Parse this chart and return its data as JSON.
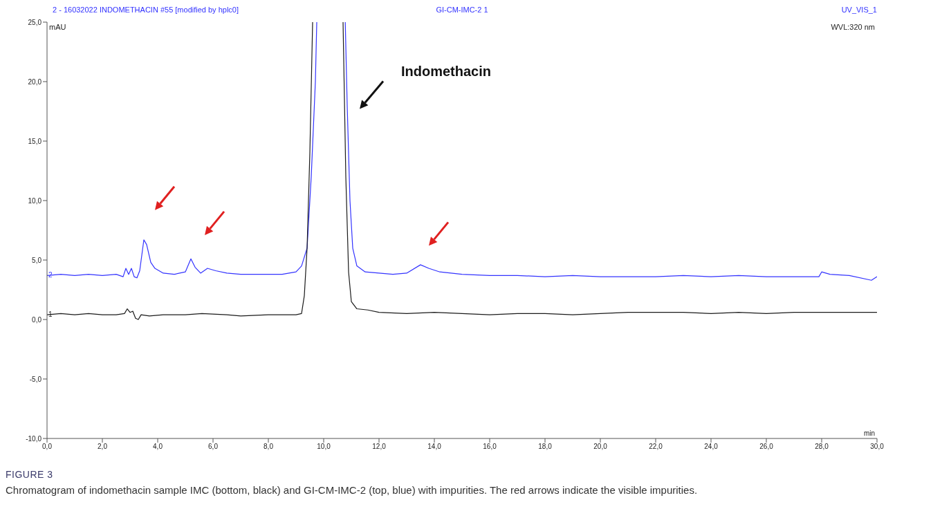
{
  "chart_data": {
    "type": "line",
    "title": "2 - 16032022 INDOMETHACIN #55 [modified by hplc0]",
    "subtitle": "GI-CM-IMC-2 1",
    "xlabel": "min",
    "ylabel": "mAU",
    "annotations": [
      "UV_VIS_1",
      "WVL:320 nm",
      "Indomethacin",
      "FIGURE 3",
      "Chromatogram of indomethacin sample IMC (bottom, black) and GI-CM-IMC-2 (top, blue) with impurities. The red arrows indicate the visible impurities."
    ],
    "xlim": [
      0,
      30
    ],
    "ylim": [
      -10,
      25
    ],
    "xticks": [
      {
        "value": 0,
        "label": "0,0"
      },
      {
        "value": 2,
        "label": "2,0"
      },
      {
        "value": 4,
        "label": "4,0"
      },
      {
        "value": 6,
        "label": "6,0"
      },
      {
        "value": 8,
        "label": "8,0"
      },
      {
        "value": 10,
        "label": "10,0"
      },
      {
        "value": 12,
        "label": "12,0"
      },
      {
        "value": 14,
        "label": "14,0"
      },
      {
        "value": 16,
        "label": "16,0"
      },
      {
        "value": 18,
        "label": "18,0"
      },
      {
        "value": 20,
        "label": "20,0"
      },
      {
        "value": 22,
        "label": "22,0"
      },
      {
        "value": 24,
        "label": "24,0"
      },
      {
        "value": 26,
        "label": "26,0"
      },
      {
        "value": 28,
        "label": "28,0"
      },
      {
        "value": 30,
        "label": "30,0"
      }
    ],
    "yticks": [
      {
        "value": -10,
        "label": "-10,0"
      },
      {
        "value": -5,
        "label": "-5,0"
      },
      {
        "value": 0,
        "label": "0,0"
      },
      {
        "value": 5,
        "label": "5,0"
      },
      {
        "value": 10,
        "label": "10,0"
      },
      {
        "value": 15,
        "label": "15,0"
      },
      {
        "value": 20,
        "label": "20,0"
      },
      {
        "value": 25,
        "label": "25,0"
      }
    ],
    "grid": false,
    "legend": false,
    "marker": "none",
    "line_style": "solid",
    "series": [
      {
        "name": "2",
        "color": "#3333ff",
        "x": [
          0,
          0.5,
          1,
          1.5,
          2,
          2.5,
          2.75,
          2.85,
          2.95,
          3.05,
          3.15,
          3.25,
          3.35,
          3.5,
          3.6,
          3.75,
          3.9,
          4.2,
          4.6,
          5,
          5.2,
          5.35,
          5.55,
          5.8,
          6.1,
          6.5,
          7,
          7.5,
          8,
          8.5,
          9,
          9.2,
          9.4,
          9.55,
          9.7,
          9.75,
          10.2,
          10.78,
          10.85,
          10.95,
          11.05,
          11.2,
          11.5,
          12,
          12.5,
          13,
          13.5,
          13.8,
          14.2,
          15,
          16,
          17,
          18,
          19,
          20,
          21,
          22,
          23,
          24,
          25,
          26,
          27,
          27.9,
          28,
          28.3,
          29,
          29.8,
          30
        ],
        "values": [
          3.7,
          3.8,
          3.7,
          3.8,
          3.7,
          3.8,
          3.6,
          4.3,
          3.8,
          4.3,
          3.6,
          3.5,
          4.1,
          6.7,
          6.3,
          4.8,
          4.3,
          3.9,
          3.8,
          4,
          5.1,
          4.4,
          3.9,
          4.3,
          4.1,
          3.9,
          3.8,
          3.8,
          3.8,
          3.8,
          4,
          4.5,
          6,
          12,
          20,
          25,
          null,
          25,
          18,
          10,
          6,
          4.5,
          4,
          3.9,
          3.8,
          3.9,
          4.6,
          4.3,
          4,
          3.8,
          3.7,
          3.7,
          3.6,
          3.7,
          3.6,
          3.6,
          3.6,
          3.7,
          3.6,
          3.7,
          3.6,
          3.6,
          3.6,
          4,
          3.8,
          3.7,
          3.3,
          3.6
        ]
      },
      {
        "name": "1",
        "color": "#1a1a1a",
        "x": [
          0,
          0.5,
          1,
          1.5,
          2,
          2.5,
          2.8,
          2.9,
          3,
          3.1,
          3.2,
          3.3,
          3.4,
          3.7,
          4.2,
          5,
          5.6,
          6.5,
          7,
          8,
          9,
          9.2,
          9.3,
          9.4,
          9.5,
          9.6,
          10.1,
          10.7,
          10.8,
          10.9,
          11,
          11.2,
          11.6,
          12,
          13,
          14,
          15,
          16,
          17,
          18,
          19,
          20,
          21,
          22,
          23,
          24,
          25,
          26,
          27,
          28,
          29,
          30
        ],
        "values": [
          0.4,
          0.5,
          0.4,
          0.5,
          0.4,
          0.4,
          0.5,
          0.9,
          0.6,
          0.7,
          0.1,
          0,
          0.4,
          0.3,
          0.4,
          0.4,
          0.5,
          0.4,
          0.3,
          0.4,
          0.4,
          0.5,
          2,
          6,
          14,
          25,
          null,
          25,
          12,
          4,
          1.5,
          0.9,
          0.8,
          0.6,
          0.5,
          0.6,
          0.5,
          0.4,
          0.5,
          0.5,
          0.4,
          0.5,
          0.6,
          0.6,
          0.6,
          0.5,
          0.6,
          0.5,
          0.6,
          0.6,
          0.6,
          0.6
        ]
      }
    ]
  }
}
